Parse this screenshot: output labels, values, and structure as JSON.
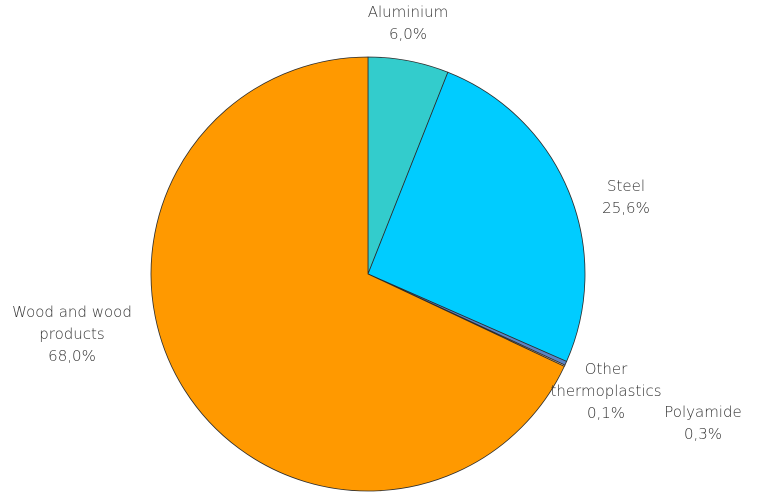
{
  "chart_data": {
    "type": "pie",
    "title": "",
    "slices": [
      {
        "name": "Aluminium",
        "value": 6.0,
        "label_lines": [
          "Aluminium"
        ],
        "value_label": "6,0%",
        "color": "#33CCCC"
      },
      {
        "name": "Steel",
        "value": 25.6,
        "label_lines": [
          "Steel"
        ],
        "value_label": "25,6%",
        "color": "#00CCFF"
      },
      {
        "name": "Polyamide",
        "value": 0.3,
        "label_lines": [
          "Polyamide"
        ],
        "value_label": "0,3%",
        "color": "#5B84C4"
      },
      {
        "name": "Other thermoplastics",
        "value": 0.1,
        "label_lines": [
          "Other",
          "thermoplastics"
        ],
        "value_label": "0,1%",
        "color": "#F7D7A8"
      },
      {
        "name": "Wood and wood products",
        "value": 68.0,
        "label_lines": [
          "Wood and wood",
          "products"
        ],
        "value_label": "68,0%",
        "color": "#FF9900"
      }
    ],
    "start_angle": "12 o'clock",
    "direction": "clockwise",
    "legend": "none"
  }
}
